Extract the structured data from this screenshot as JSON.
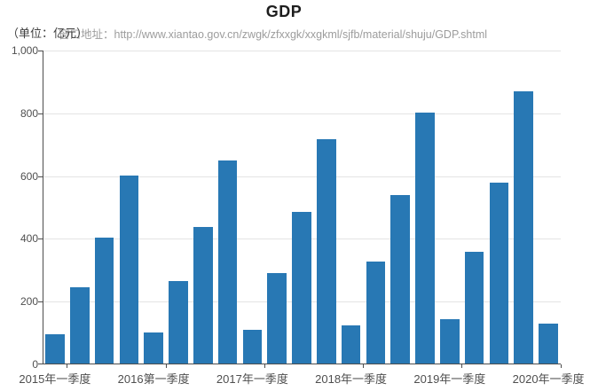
{
  "title": "GDP",
  "unit_label": "（单位：亿元）",
  "source_label": "窗口地址：http://www.xiantao.gov.cn/zwgk/zfxxgk/xxgkml/sjfb/material/shuju/GDP.shtml",
  "colors": {
    "bar": "#2878b4",
    "axis": "#4d4d4d",
    "grid": "#e4e4e4",
    "label": "#4f4f4f",
    "title": "#1e1e1e",
    "unit": "#3f3f3f",
    "source": "#9c9c9c"
  },
  "chart_data": {
    "type": "bar",
    "title": "GDP",
    "unit": "亿元",
    "ylabel": "",
    "xlabel": "",
    "ylim": [
      0,
      1000
    ],
    "grid": true,
    "legend_position": "none",
    "y_ticks": [
      "0",
      "200",
      "400",
      "600",
      "800",
      "1,000"
    ],
    "values": [
      94,
      243,
      402,
      598,
      99,
      262,
      435,
      646,
      107,
      289,
      483,
      716,
      122,
      325,
      537,
      800,
      140,
      355,
      576,
      868,
      128
    ],
    "x_labels": [
      {
        "index": 0,
        "label": "2015年一季度"
      },
      {
        "index": 4,
        "label": "2016第一季度"
      },
      {
        "index": 8,
        "label": "2017年一季度"
      },
      {
        "index": 12,
        "label": "2018年一季度"
      },
      {
        "index": 16,
        "label": "2019年一季度"
      },
      {
        "index": 20,
        "label": "2020年一季度"
      }
    ]
  }
}
